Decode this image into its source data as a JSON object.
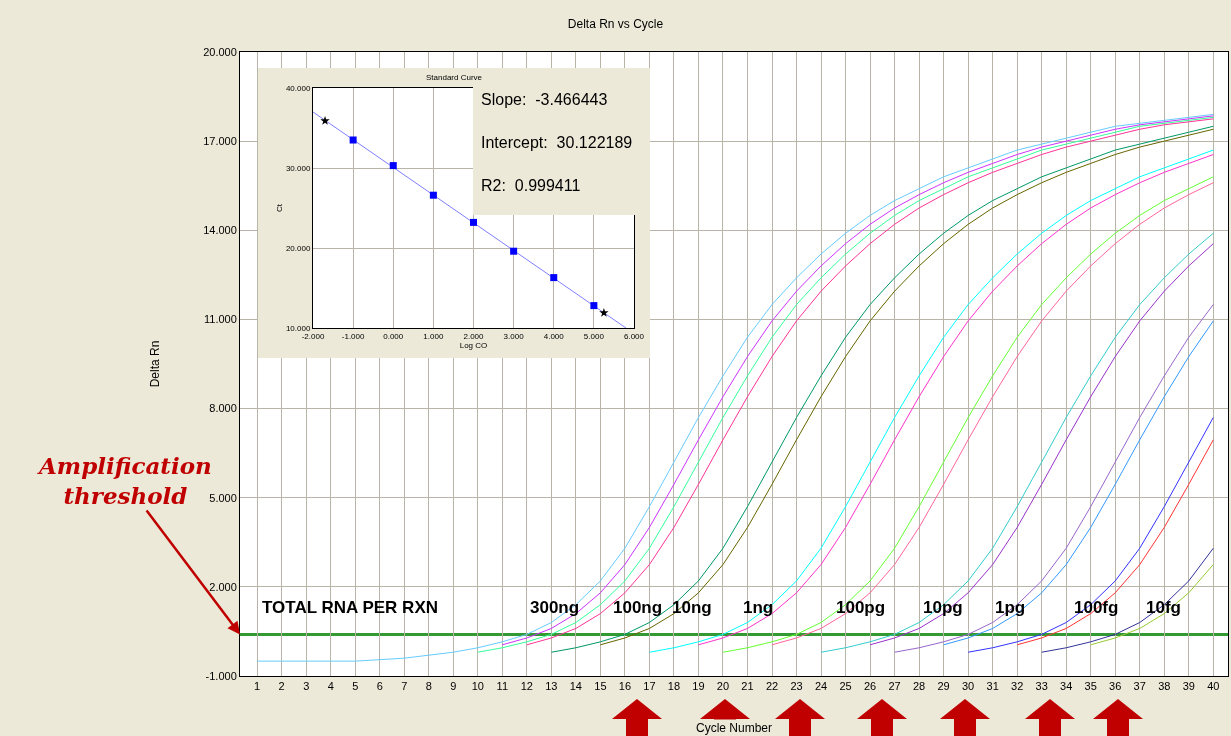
{
  "chart_data": [
    {
      "type": "line",
      "title": "Delta Rn vs Cycle",
      "xlabel": "Cycle Number",
      "ylabel": "Delta Rn",
      "x": [
        1,
        2,
        3,
        4,
        5,
        6,
        7,
        8,
        9,
        10,
        11,
        12,
        13,
        14,
        15,
        16,
        17,
        18,
        19,
        20,
        21,
        22,
        23,
        24,
        25,
        26,
        27,
        28,
        29,
        30,
        31,
        32,
        33,
        34,
        35,
        36,
        37,
        38,
        39,
        40
      ],
      "xlim": [
        0.3,
        40.6
      ],
      "xticks": [
        1,
        2,
        3,
        4,
        5,
        6,
        7,
        8,
        9,
        10,
        11,
        12,
        13,
        14,
        15,
        16,
        17,
        18,
        19,
        20,
        21,
        22,
        23,
        24,
        25,
        26,
        27,
        28,
        29,
        30,
        31,
        32,
        33,
        34,
        35,
        36,
        37,
        38,
        39,
        40
      ],
      "ylim": [
        -1,
        20
      ],
      "yticks": [
        {
          "value": -1,
          "label": "-1.000"
        },
        {
          "value": 2,
          "label": "2.000"
        },
        {
          "value": 5,
          "label": "5.000"
        },
        {
          "value": 8,
          "label": "8.000"
        },
        {
          "value": 11,
          "label": "11.000"
        },
        {
          "value": 14,
          "label": "14.000"
        },
        {
          "value": 17,
          "label": "17.000"
        },
        {
          "value": 20,
          "label": "20.000"
        }
      ],
      "grid": true,
      "marker": "none",
      "line_style": "solid",
      "ref_lines": [
        {
          "axis": "y",
          "value": 0.4,
          "color": "#339933"
        }
      ],
      "annotations": [
        "TOTAL RNA PER RXN",
        {
          "text": "Amplification threshold",
          "x": 0.3,
          "y": 0.4
        },
        "300ng",
        "100ng",
        "10ng",
        "1ng",
        "100pg",
        "10pg",
        "1pg",
        "100fg",
        "10fg"
      ],
      "series": [
        {
          "color": "#66ccff",
          "values": [
            -0.5,
            -0.5,
            -0.5,
            -0.5,
            -0.5,
            -0.45,
            -0.4,
            -0.3,
            -0.2,
            -0.05,
            0.15,
            0.4,
            0.8,
            1.4,
            2.2,
            3.3,
            4.7,
            6.2,
            7.7,
            9.1,
            10.4,
            11.5,
            12.4,
            13.2,
            13.9,
            14.5,
            15.0,
            15.4,
            15.8,
            16.1,
            16.4,
            16.7,
            16.9,
            17.1,
            17.3,
            17.5,
            17.6,
            17.7,
            17.8,
            17.9
          ]
        },
        {
          "color": "#cc33ff",
          "values": [
            null,
            null,
            null,
            null,
            null,
            null,
            null,
            null,
            null,
            null,
            0.05,
            0.28,
            0.6,
            1.1,
            1.8,
            2.75,
            4.0,
            5.45,
            6.95,
            8.4,
            9.75,
            10.95,
            11.95,
            12.8,
            13.55,
            14.2,
            14.75,
            15.2,
            15.6,
            15.95,
            16.25,
            16.55,
            16.8,
            17.0,
            17.2,
            17.4,
            17.55,
            17.65,
            17.75,
            17.85
          ]
        },
        {
          "color": "#33ff99",
          "values": [
            null,
            null,
            null,
            null,
            null,
            null,
            null,
            null,
            null,
            -0.2,
            -0.05,
            0.15,
            0.4,
            0.8,
            1.4,
            2.2,
            3.3,
            4.7,
            6.2,
            7.7,
            9.1,
            10.4,
            11.5,
            12.4,
            13.2,
            13.9,
            14.5,
            15.0,
            15.4,
            15.8,
            16.1,
            16.4,
            16.7,
            16.9,
            17.1,
            17.3,
            17.5,
            17.6,
            17.7,
            17.8
          ]
        },
        {
          "color": "#ff3399",
          "values": [
            null,
            null,
            null,
            null,
            null,
            null,
            null,
            null,
            null,
            null,
            null,
            0.05,
            0.28,
            0.6,
            1.1,
            1.8,
            2.75,
            4.0,
            5.45,
            6.95,
            8.4,
            9.75,
            10.95,
            11.95,
            12.8,
            13.55,
            14.2,
            14.75,
            15.2,
            15.6,
            15.95,
            16.25,
            16.55,
            16.8,
            17.0,
            17.2,
            17.4,
            17.55,
            17.65,
            17.75
          ]
        },
        {
          "color": "#009966",
          "values": [
            null,
            null,
            null,
            null,
            null,
            null,
            null,
            null,
            null,
            null,
            null,
            null,
            -0.2,
            -0.05,
            0.15,
            0.4,
            0.8,
            1.4,
            2.2,
            3.3,
            4.7,
            6.2,
            7.7,
            9.1,
            10.4,
            11.5,
            12.4,
            13.2,
            13.9,
            14.5,
            15.0,
            15.4,
            15.8,
            16.1,
            16.4,
            16.7,
            16.9,
            17.1,
            17.3,
            17.5
          ]
        },
        {
          "color": "#666600",
          "values": [
            null,
            null,
            null,
            null,
            null,
            null,
            null,
            null,
            null,
            null,
            null,
            null,
            null,
            null,
            0.05,
            0.28,
            0.6,
            1.1,
            1.8,
            2.75,
            4.0,
            5.45,
            6.95,
            8.4,
            9.75,
            10.95,
            11.95,
            12.8,
            13.55,
            14.2,
            14.75,
            15.2,
            15.6,
            15.95,
            16.25,
            16.55,
            16.8,
            17.0,
            17.2,
            17.4
          ]
        },
        {
          "color": "#00ffff",
          "values": [
            null,
            null,
            null,
            null,
            null,
            null,
            null,
            null,
            null,
            null,
            null,
            null,
            null,
            null,
            null,
            null,
            -0.2,
            -0.05,
            0.15,
            0.4,
            0.8,
            1.4,
            2.2,
            3.3,
            4.7,
            6.2,
            7.7,
            9.1,
            10.4,
            11.5,
            12.4,
            13.2,
            13.9,
            14.5,
            15.0,
            15.4,
            15.8,
            16.1,
            16.4,
            16.7
          ]
        },
        {
          "color": "#ff33cc",
          "values": [
            null,
            null,
            null,
            null,
            null,
            null,
            null,
            null,
            null,
            null,
            null,
            null,
            null,
            null,
            null,
            null,
            null,
            null,
            0.05,
            0.28,
            0.6,
            1.1,
            1.8,
            2.75,
            4.0,
            5.45,
            6.95,
            8.4,
            9.75,
            10.95,
            11.95,
            12.8,
            13.55,
            14.2,
            14.75,
            15.2,
            15.6,
            15.95,
            16.25,
            16.55
          ]
        },
        {
          "color": "#66ff33",
          "values": [
            null,
            null,
            null,
            null,
            null,
            null,
            null,
            null,
            null,
            null,
            null,
            null,
            null,
            null,
            null,
            null,
            null,
            null,
            null,
            -0.2,
            -0.05,
            0.15,
            0.4,
            0.8,
            1.4,
            2.2,
            3.3,
            4.7,
            6.2,
            7.7,
            9.1,
            10.4,
            11.5,
            12.4,
            13.2,
            13.9,
            14.5,
            15.0,
            15.4,
            15.8
          ]
        },
        {
          "color": "#ff6699",
          "values": [
            null,
            null,
            null,
            null,
            null,
            null,
            null,
            null,
            null,
            null,
            null,
            null,
            null,
            null,
            null,
            null,
            null,
            null,
            null,
            null,
            null,
            0.05,
            0.28,
            0.6,
            1.1,
            1.8,
            2.75,
            4.0,
            5.45,
            6.95,
            8.4,
            9.75,
            10.95,
            11.95,
            12.8,
            13.55,
            14.2,
            14.75,
            15.2,
            15.6
          ]
        },
        {
          "color": "#33cccc",
          "values": [
            null,
            null,
            null,
            null,
            null,
            null,
            null,
            null,
            null,
            null,
            null,
            null,
            null,
            null,
            null,
            null,
            null,
            null,
            null,
            null,
            null,
            null,
            null,
            -0.2,
            -0.05,
            0.15,
            0.4,
            0.8,
            1.4,
            2.2,
            3.3,
            4.7,
            6.2,
            7.7,
            9.1,
            10.4,
            11.5,
            12.4,
            13.2,
            13.9
          ]
        },
        {
          "color": "#9933cc",
          "values": [
            null,
            null,
            null,
            null,
            null,
            null,
            null,
            null,
            null,
            null,
            null,
            null,
            null,
            null,
            null,
            null,
            null,
            null,
            null,
            null,
            null,
            null,
            null,
            null,
            null,
            0.05,
            0.28,
            0.6,
            1.1,
            1.8,
            2.75,
            4.0,
            5.45,
            6.95,
            8.4,
            9.75,
            10.95,
            11.95,
            12.8,
            13.55
          ]
        },
        {
          "color": "#9966cc",
          "values": [
            null,
            null,
            null,
            null,
            null,
            null,
            null,
            null,
            null,
            null,
            null,
            null,
            null,
            null,
            null,
            null,
            null,
            null,
            null,
            null,
            null,
            null,
            null,
            null,
            null,
            null,
            -0.2,
            -0.05,
            0.15,
            0.4,
            0.8,
            1.4,
            2.2,
            3.3,
            4.7,
            6.2,
            7.7,
            9.1,
            10.4,
            11.5
          ]
        },
        {
          "color": "#3399ff",
          "values": [
            null,
            null,
            null,
            null,
            null,
            null,
            null,
            null,
            null,
            null,
            null,
            null,
            null,
            null,
            null,
            null,
            null,
            null,
            null,
            null,
            null,
            null,
            null,
            null,
            null,
            null,
            null,
            null,
            0.05,
            0.28,
            0.6,
            1.1,
            1.8,
            2.75,
            4.0,
            5.45,
            6.95,
            8.4,
            9.75,
            10.95
          ]
        },
        {
          "color": "#3333ff",
          "values": [
            null,
            null,
            null,
            null,
            null,
            null,
            null,
            null,
            null,
            null,
            null,
            null,
            null,
            null,
            null,
            null,
            null,
            null,
            null,
            null,
            null,
            null,
            null,
            null,
            null,
            null,
            null,
            null,
            null,
            -0.2,
            -0.05,
            0.15,
            0.4,
            0.8,
            1.4,
            2.2,
            3.3,
            4.7,
            6.2,
            7.7
          ]
        },
        {
          "color": "#ff3333",
          "values": [
            null,
            null,
            null,
            null,
            null,
            null,
            null,
            null,
            null,
            null,
            null,
            null,
            null,
            null,
            null,
            null,
            null,
            null,
            null,
            null,
            null,
            null,
            null,
            null,
            null,
            null,
            null,
            null,
            null,
            null,
            null,
            0.05,
            0.28,
            0.6,
            1.1,
            1.8,
            2.75,
            4.0,
            5.45,
            6.95
          ]
        },
        {
          "color": "#333399",
          "values": [
            null,
            null,
            null,
            null,
            null,
            null,
            null,
            null,
            null,
            null,
            null,
            null,
            null,
            null,
            null,
            null,
            null,
            null,
            null,
            null,
            null,
            null,
            null,
            null,
            null,
            null,
            null,
            null,
            null,
            null,
            null,
            null,
            -0.2,
            -0.05,
            0.15,
            0.4,
            0.8,
            1.4,
            2.2,
            3.3
          ]
        },
        {
          "color": "#99cc33",
          "values": [
            null,
            null,
            null,
            null,
            null,
            null,
            null,
            null,
            null,
            null,
            null,
            null,
            null,
            null,
            null,
            null,
            null,
            null,
            null,
            null,
            null,
            null,
            null,
            null,
            null,
            null,
            null,
            null,
            null,
            null,
            null,
            null,
            null,
            null,
            0.05,
            0.28,
            0.6,
            1.1,
            1.8,
            2.75
          ]
        }
      ]
    },
    {
      "type": "scatter",
      "title": "Standard Curve",
      "xlabel": "Log CO",
      "ylabel": "Ct",
      "xlim": [
        -2,
        6
      ],
      "xticks": [
        {
          "value": -2,
          "label": "-2.000"
        },
        {
          "value": -1,
          "label": "-1.000"
        },
        {
          "value": 0,
          "label": "0.000"
        },
        {
          "value": 1,
          "label": "1.000"
        },
        {
          "value": 2,
          "label": "2.000"
        },
        {
          "value": 3,
          "label": "3.000"
        },
        {
          "value": 4,
          "label": "4.000"
        },
        {
          "value": 5,
          "label": "5.000"
        },
        {
          "value": 6,
          "label": "6.000"
        }
      ],
      "ylim": [
        10,
        40
      ],
      "yticks": [
        {
          "value": 10,
          "label": "10.000"
        },
        {
          "value": 20,
          "label": "20.000"
        },
        {
          "value": 30,
          "label": "30.000"
        },
        {
          "value": 40,
          "label": "40.000"
        }
      ],
      "grid": true,
      "annotations": [
        "Slope:  -3.466443",
        "Intercept:  30.122189",
        "R2:  0.999411"
      ],
      "series": [
        {
          "type": "line",
          "color": "#7f7fff",
          "marker": "none",
          "x": [
            -2,
            5.8
          ],
          "values": [
            37,
            10
          ]
        },
        {
          "color": "#0000ff",
          "marker": "square",
          "x": [
            -1,
            0,
            1,
            2,
            3,
            4,
            5
          ],
          "values": [
            33.5,
            30.3,
            26.6,
            23.2,
            19.6,
            16.3,
            12.8
          ]
        },
        {
          "color": "#000000",
          "marker": "star",
          "x": [
            -1.7,
            5.25
          ],
          "values": [
            35.9,
            11.9
          ]
        }
      ]
    }
  ]
}
